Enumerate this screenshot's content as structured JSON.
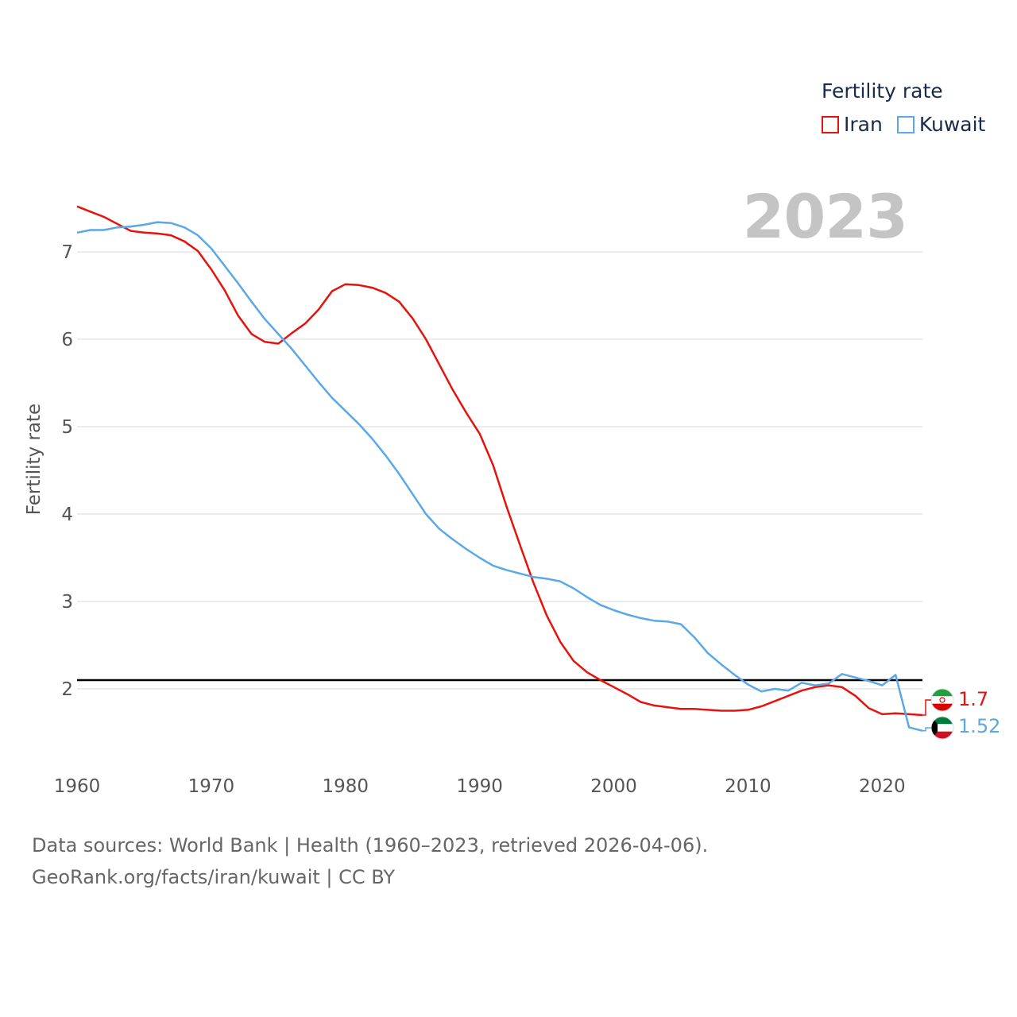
{
  "legend": {
    "title": "Fertility rate",
    "items": [
      {
        "label": "Iran",
        "color": "#e8120c"
      },
      {
        "label": "Kuwait",
        "color": "#5aa8e8"
      }
    ]
  },
  "current_year": "2023",
  "footer": {
    "line1": "Data sources: World Bank | Health (1960–2023, retrieved 2026-04-06).",
    "line2": "GeoRank.org/facts/iran/kuwait | CC BY"
  },
  "end_labels": {
    "iran": "1.7",
    "kuwait": "1.52"
  },
  "chart_data": {
    "type": "line",
    "title": "Fertility rate",
    "xlabel": "",
    "ylabel": "Fertility rate",
    "xlim": [
      1960,
      2023
    ],
    "ylim": [
      1.1,
      7.9
    ],
    "xticks": [
      1960,
      1970,
      1980,
      1990,
      2000,
      2010,
      2020
    ],
    "yticks": [
      2,
      3,
      4,
      5,
      6,
      7
    ],
    "grid": true,
    "reference_line": 2.1,
    "x": [
      1960,
      1961,
      1962,
      1963,
      1964,
      1965,
      1966,
      1967,
      1968,
      1969,
      1970,
      1971,
      1972,
      1973,
      1974,
      1975,
      1976,
      1977,
      1978,
      1979,
      1980,
      1981,
      1982,
      1983,
      1984,
      1985,
      1986,
      1987,
      1988,
      1989,
      1990,
      1991,
      1992,
      1993,
      1994,
      1995,
      1996,
      1997,
      1998,
      1999,
      2000,
      2001,
      2002,
      2003,
      2004,
      2005,
      2006,
      2007,
      2008,
      2009,
      2010,
      2011,
      2012,
      2013,
      2014,
      2015,
      2016,
      2017,
      2018,
      2019,
      2020,
      2021,
      2022,
      2023
    ],
    "series": [
      {
        "name": "Iran",
        "color": "#e8120c",
        "values": [
          7.52,
          7.46,
          7.4,
          7.32,
          7.24,
          7.22,
          7.21,
          7.19,
          7.12,
          7.01,
          6.8,
          6.56,
          6.27,
          6.06,
          5.97,
          5.95,
          6.07,
          6.18,
          6.34,
          6.55,
          6.63,
          6.62,
          6.59,
          6.53,
          6.43,
          6.24,
          6.0,
          5.71,
          5.42,
          5.16,
          4.92,
          4.56,
          4.09,
          3.65,
          3.22,
          2.84,
          2.54,
          2.32,
          2.19,
          2.1,
          2.02,
          1.94,
          1.85,
          1.81,
          1.79,
          1.77,
          1.77,
          1.76,
          1.75,
          1.75,
          1.76,
          1.8,
          1.86,
          1.92,
          1.98,
          2.02,
          2.04,
          2.02,
          1.92,
          1.78,
          1.71,
          1.72,
          1.71,
          1.7
        ]
      },
      {
        "name": "Kuwait",
        "color": "#5aa8e8",
        "values": [
          7.22,
          7.25,
          7.25,
          7.28,
          7.29,
          7.31,
          7.34,
          7.33,
          7.28,
          7.19,
          7.04,
          6.84,
          6.64,
          6.43,
          6.23,
          6.06,
          5.89,
          5.7,
          5.51,
          5.33,
          5.18,
          5.03,
          4.86,
          4.67,
          4.46,
          4.23,
          4.0,
          3.83,
          3.71,
          3.6,
          3.5,
          3.41,
          3.36,
          3.32,
          3.28,
          3.26,
          3.23,
          3.15,
          3.05,
          2.96,
          2.9,
          2.85,
          2.81,
          2.78,
          2.77,
          2.74,
          2.59,
          2.41,
          2.28,
          2.16,
          2.05,
          1.97,
          2.0,
          1.98,
          2.07,
          2.04,
          2.06,
          2.17,
          2.13,
          2.09,
          2.04,
          2.16,
          1.56,
          1.52
        ]
      }
    ]
  }
}
